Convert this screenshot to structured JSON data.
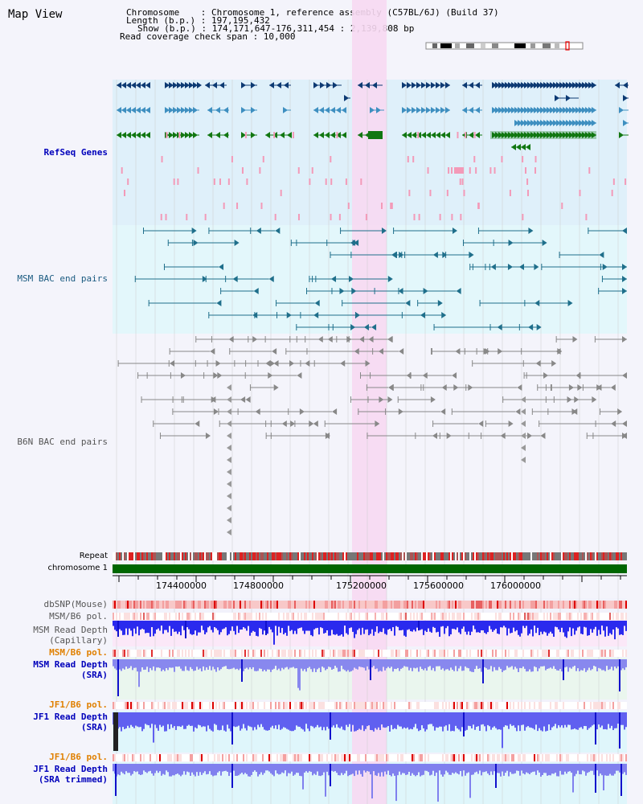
{
  "title": "Map View",
  "info": {
    "line1": "Chromosome    : Chromosome 1, reference assembly (C57BL/6J) (Build 37)",
    "line2": "Length (b.p.) : 197,195,432",
    "line3": "Show (b.p.) : 174,171,647-176,311,454 : 2,139,808 bp",
    "line4": "Read coverage check span : 10,000"
  },
  "tracks": {
    "refseq": "RefSeq Genes",
    "msm_bac": "MSM BAC end pairs",
    "b6n_bac": "B6N BAC end pairs",
    "repeat": "Repeat",
    "chromosome": "chromosome 1",
    "dbsnp": "dbSNP(Mouse)",
    "msm_b6_pol_1": "MSM/B6 pol.",
    "msm_read_depth_cap_1": "MSM Read Depth",
    "msm_read_depth_cap_2": "(Capillary)",
    "msm_b6_pol_2": "MSM/B6 pol.",
    "msm_read_depth_sra_1": "MSM Read Depth",
    "msm_read_depth_sra_2": "(SRA)",
    "jf1_b6_pol_1": "JF1/B6 pol.",
    "jf1_read_depth_sra_1": "JF1 Read Depth",
    "jf1_read_depth_sra_2": "(SRA)",
    "jf1_b6_pol_2": "JF1/B6 pol.",
    "jf1_read_depth_trim_1": "JF1 Read Depth",
    "jf1_read_depth_trim_2": "(SRA trimmed)"
  },
  "axis_ticks": [
    "174400000",
    "174800000",
    "175200000",
    "175600000",
    "176000000"
  ],
  "colors": {
    "refseq_bg": "#dff0fa",
    "msm_bg": "#e3f7fb",
    "highlight": "#f7d9f2",
    "chromosome_bar": "#006600",
    "gene_dark": "#0d3a73",
    "gene_mid": "#3e8fc0",
    "gene_green": "#117711",
    "depth_blue": "#3333ee"
  }
}
